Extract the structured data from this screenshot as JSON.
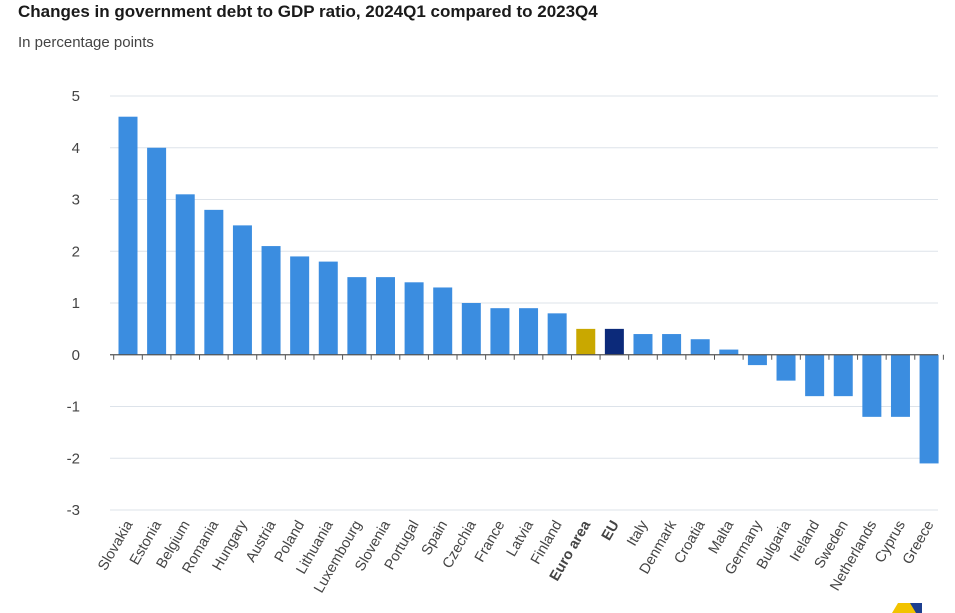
{
  "chart_data": {
    "type": "bar",
    "title": "Changes in government debt to GDP ratio, 2024Q1 compared to 2023Q4",
    "subtitle": "In percentage points",
    "xlabel": "",
    "ylabel": "",
    "ylim": [
      -3,
      5
    ],
    "yticks": [
      5,
      4,
      3,
      2,
      1,
      0,
      -1,
      -2,
      -3
    ],
    "grid": true,
    "categories": [
      "Slovakia",
      "Estonia",
      "Belgium",
      "Romania",
      "Hungary",
      "Austria",
      "Poland",
      "Lithuania",
      "Luxembourg",
      "Slovenia",
      "Portugal",
      "Spain",
      "Czechia",
      "France",
      "Latvia",
      "Finland",
      "Euro area",
      "EU",
      "Italy",
      "Denmark",
      "Croatia",
      "Malta",
      "Germany",
      "Bulgaria",
      "Ireland",
      "Sweden",
      "Netherlands",
      "Cyprus",
      "Greece"
    ],
    "values": [
      4.6,
      4.0,
      3.1,
      2.8,
      2.5,
      2.1,
      1.9,
      1.8,
      1.5,
      1.5,
      1.4,
      1.3,
      1.0,
      0.9,
      0.9,
      0.8,
      0.5,
      0.5,
      0.4,
      0.4,
      0.3,
      0.1,
      -0.2,
      -0.5,
      -0.8,
      -0.8,
      -1.2,
      -1.2,
      -2.1
    ],
    "highlight": {
      "Euro area": "#c9a800",
      "EU": "#0c2a7a"
    },
    "bold_categories": [
      "Euro area",
      "EU"
    ],
    "colors": {
      "default": "#3b8de0",
      "grid": "#dde3ea",
      "axis": "#555555",
      "text": "#444444"
    }
  }
}
